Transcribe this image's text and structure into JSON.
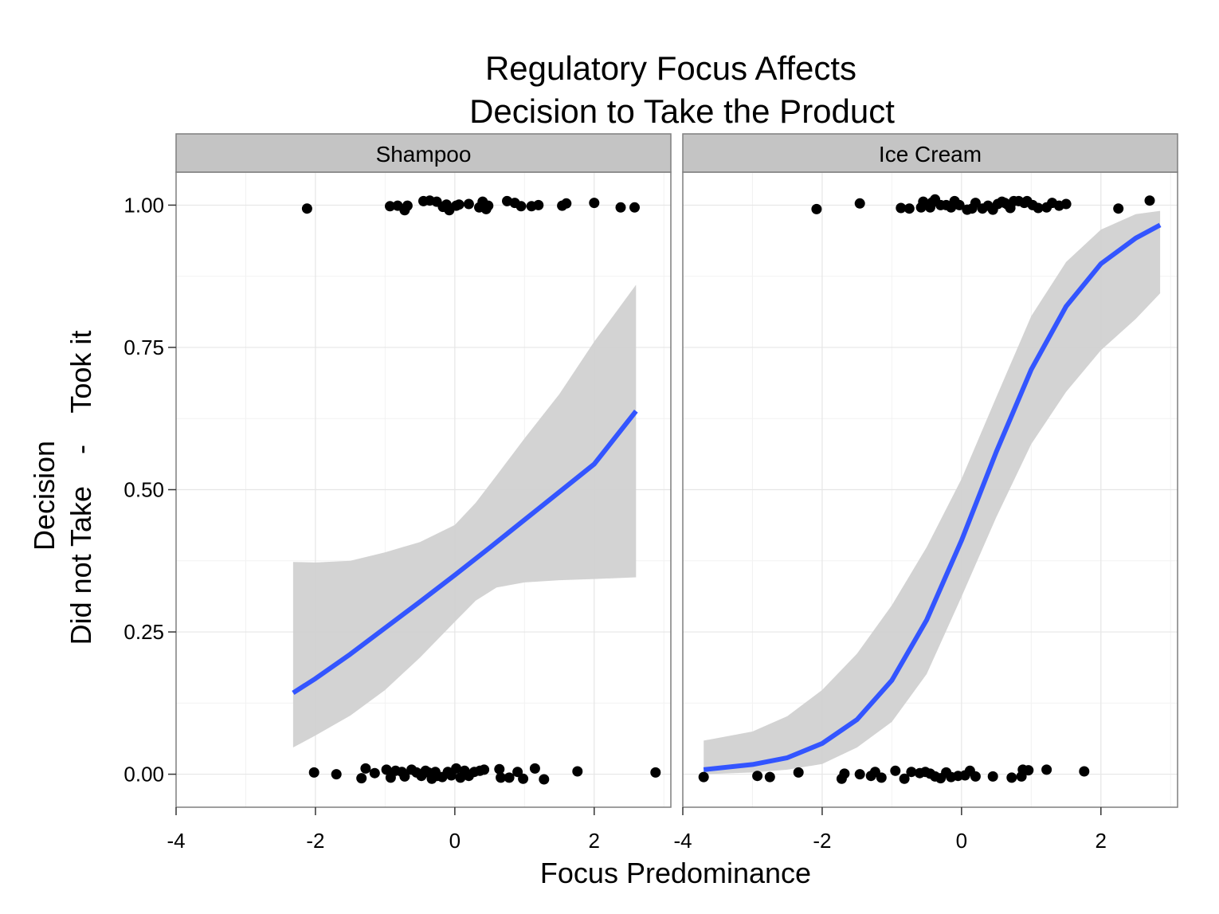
{
  "chart_data": {
    "type": "scatter",
    "title_lines": [
      "Regulatory Focus Affects",
      "Decision to Take the Product"
    ],
    "xlabel": "Focus Predominance",
    "ylabel_lines": [
      "Decision",
      "Did not Take    -    Took it"
    ],
    "xlim": [
      -4,
      3.1
    ],
    "ylim": [
      -0.058,
      1.058
    ],
    "x_ticks": [
      -4,
      -2,
      0,
      2
    ],
    "x_tick_labels": [
      "-4",
      "-2",
      "0",
      "2"
    ],
    "y_ticks": [
      0,
      0.25,
      0.5,
      0.75,
      1
    ],
    "y_tick_labels": [
      "0.00",
      "0.25",
      "0.50",
      "0.75",
      "1.00"
    ],
    "grid": true,
    "colors": {
      "point": "#000000",
      "fit_line": "#3355ff",
      "ribbon": "#d1d1d1",
      "strip": "#c4c4c4",
      "grid": "#e6e6e6"
    },
    "panels": [
      {
        "label": "Shampoo",
        "points_took": [
          [
            -2.12,
            0.994
          ],
          [
            -0.93,
            0.998
          ],
          [
            -0.82,
            0.999
          ],
          [
            -0.72,
            0.991
          ],
          [
            -0.68,
            0.999
          ],
          [
            -0.45,
            1.007
          ],
          [
            -0.36,
            1.008
          ],
          [
            -0.26,
            1.006
          ],
          [
            -0.17,
            0.997
          ],
          [
            -0.12,
            1.001
          ],
          [
            -0.08,
            0.991
          ],
          [
            0.02,
            0.999
          ],
          [
            0.06,
            1.001
          ],
          [
            0.2,
            1.002
          ],
          [
            0.35,
            0.996
          ],
          [
            0.4,
            1.006
          ],
          [
            0.45,
            0.993
          ],
          [
            0.48,
            0.999
          ],
          [
            0.75,
            1.007
          ],
          [
            0.86,
            1.004
          ],
          [
            0.95,
            0.998
          ],
          [
            1.1,
            0.998
          ],
          [
            1.2,
            1.0
          ],
          [
            1.54,
            0.999
          ],
          [
            1.6,
            1.003
          ],
          [
            2.0,
            1.004
          ],
          [
            2.38,
            0.996
          ],
          [
            2.58,
            0.996
          ]
        ],
        "points_not": [
          [
            -2.02,
            0.003
          ],
          [
            -1.7,
            0.0
          ],
          [
            -1.34,
            -0.007
          ],
          [
            -1.28,
            0.01
          ],
          [
            -1.15,
            0.002
          ],
          [
            -0.98,
            0.008
          ],
          [
            -0.92,
            -0.006
          ],
          [
            -0.85,
            0.006
          ],
          [
            -0.76,
            0.004
          ],
          [
            -0.72,
            -0.004
          ],
          [
            -0.62,
            0.008
          ],
          [
            -0.55,
            0.003
          ],
          [
            -0.48,
            -0.003
          ],
          [
            -0.42,
            0.006
          ],
          [
            -0.38,
            0.003
          ],
          [
            -0.33,
            -0.008
          ],
          [
            -0.28,
            0.004
          ],
          [
            -0.25,
            -0.003
          ],
          [
            -0.18,
            -0.005
          ],
          [
            -0.1,
            0.004
          ],
          [
            -0.05,
            -0.002
          ],
          [
            0.02,
            0.01
          ],
          [
            0.08,
            -0.006
          ],
          [
            0.14,
            0.006
          ],
          [
            0.2,
            -0.003
          ],
          [
            0.28,
            0.004
          ],
          [
            0.36,
            0.006
          ],
          [
            0.42,
            0.008
          ],
          [
            0.64,
            0.009
          ],
          [
            0.66,
            -0.006
          ],
          [
            0.78,
            -0.006
          ],
          [
            0.9,
            0.004
          ],
          [
            0.98,
            -0.008
          ],
          [
            1.15,
            0.01
          ],
          [
            1.28,
            -0.009
          ],
          [
            1.76,
            0.005
          ],
          [
            2.88,
            0.003
          ]
        ],
        "fit": {
          "x": [
            -2.32,
            -2.0,
            -1.5,
            -1.0,
            -0.5,
            0.0,
            0.5,
            1.0,
            1.5,
            2.0,
            2.6
          ],
          "y": [
            0.143,
            0.168,
            0.211,
            0.257,
            0.303,
            0.35,
            0.398,
            0.447,
            0.496,
            0.545,
            0.638
          ]
        },
        "ribbon": {
          "x": [
            -2.32,
            -2.0,
            -1.5,
            -1.0,
            -0.5,
            0.0,
            0.3,
            0.6,
            1.0,
            1.5,
            2.0,
            2.6
          ],
          "lower": [
            0.047,
            0.068,
            0.103,
            0.148,
            0.205,
            0.268,
            0.305,
            0.328,
            0.337,
            0.341,
            0.343,
            0.346
          ],
          "upper": [
            0.373,
            0.372,
            0.375,
            0.39,
            0.408,
            0.438,
            0.477,
            0.525,
            0.59,
            0.668,
            0.76,
            0.86
          ]
        }
      },
      {
        "label": "Ice Cream",
        "points_took": [
          [
            -2.08,
            0.993
          ],
          [
            -1.46,
            1.003
          ],
          [
            -0.87,
            0.995
          ],
          [
            -0.75,
            0.994
          ],
          [
            -0.58,
            0.996
          ],
          [
            -0.55,
            1.006
          ],
          [
            -0.45,
            0.996
          ],
          [
            -0.42,
            1.005
          ],
          [
            -0.38,
            1.01
          ],
          [
            -0.3,
            1.0
          ],
          [
            -0.22,
            1.0
          ],
          [
            -0.15,
            0.996
          ],
          [
            -0.1,
            1.007
          ],
          [
            -0.03,
            1.0
          ],
          [
            0.08,
            0.992
          ],
          [
            0.15,
            0.994
          ],
          [
            0.2,
            1.004
          ],
          [
            0.3,
            0.994
          ],
          [
            0.38,
            0.999
          ],
          [
            0.45,
            0.992
          ],
          [
            0.52,
            1.002
          ],
          [
            0.58,
            1.006
          ],
          [
            0.62,
            1.004
          ],
          [
            0.66,
            1.001
          ],
          [
            0.7,
            0.995
          ],
          [
            0.75,
            1.007
          ],
          [
            0.82,
            1.007
          ],
          [
            0.9,
            1.004
          ],
          [
            0.94,
            1.007
          ],
          [
            1.02,
            1.0
          ],
          [
            1.1,
            0.995
          ],
          [
            1.22,
            0.996
          ],
          [
            1.3,
            1.004
          ],
          [
            1.4,
            0.999
          ],
          [
            1.5,
            1.002
          ],
          [
            2.25,
            0.994
          ],
          [
            2.7,
            1.008
          ]
        ],
        "points_not": [
          [
            -3.7,
            -0.005
          ],
          [
            -2.93,
            -0.003
          ],
          [
            -2.75,
            -0.005
          ],
          [
            -2.34,
            0.003
          ],
          [
            -1.72,
            -0.008
          ],
          [
            -1.68,
            0.001
          ],
          [
            -1.46,
            0.0
          ],
          [
            -1.3,
            -0.003
          ],
          [
            -1.24,
            0.004
          ],
          [
            -1.15,
            -0.006
          ],
          [
            -0.95,
            0.006
          ],
          [
            -0.82,
            -0.008
          ],
          [
            -0.72,
            0.004
          ],
          [
            -0.6,
            0.002
          ],
          [
            -0.52,
            0.004
          ],
          [
            -0.45,
            0.001
          ],
          [
            -0.38,
            -0.004
          ],
          [
            -0.3,
            -0.007
          ],
          [
            -0.22,
            0.003
          ],
          [
            -0.15,
            -0.005
          ],
          [
            -0.05,
            -0.003
          ],
          [
            0.05,
            -0.002
          ],
          [
            0.12,
            0.006
          ],
          [
            0.2,
            -0.004
          ],
          [
            0.45,
            -0.004
          ],
          [
            0.72,
            -0.006
          ],
          [
            0.86,
            -0.004
          ],
          [
            0.88,
            0.008
          ],
          [
            0.96,
            0.007
          ],
          [
            1.22,
            0.008
          ],
          [
            1.76,
            0.005
          ]
        ],
        "fit": {
          "x": [
            -3.7,
            -3.0,
            -2.5,
            -2.0,
            -1.5,
            -1.0,
            -0.5,
            0.0,
            0.5,
            1.0,
            1.5,
            2.0,
            2.5,
            2.85
          ],
          "y": [
            0.008,
            0.017,
            0.029,
            0.054,
            0.096,
            0.165,
            0.271,
            0.411,
            0.567,
            0.711,
            0.822,
            0.897,
            0.942,
            0.965
          ]
        },
        "ribbon": {
          "x": [
            -3.7,
            -3.0,
            -2.5,
            -2.0,
            -1.5,
            -1.0,
            -0.5,
            0.0,
            0.5,
            1.0,
            1.5,
            2.0,
            2.5,
            2.85
          ],
          "lower": [
            0.0,
            0.003,
            0.008,
            0.018,
            0.047,
            0.092,
            0.176,
            0.312,
            0.452,
            0.58,
            0.672,
            0.745,
            0.8,
            0.845
          ],
          "upper": [
            0.059,
            0.075,
            0.102,
            0.148,
            0.212,
            0.297,
            0.399,
            0.519,
            0.663,
            0.805,
            0.9,
            0.957,
            0.984,
            0.99
          ]
        }
      }
    ]
  }
}
